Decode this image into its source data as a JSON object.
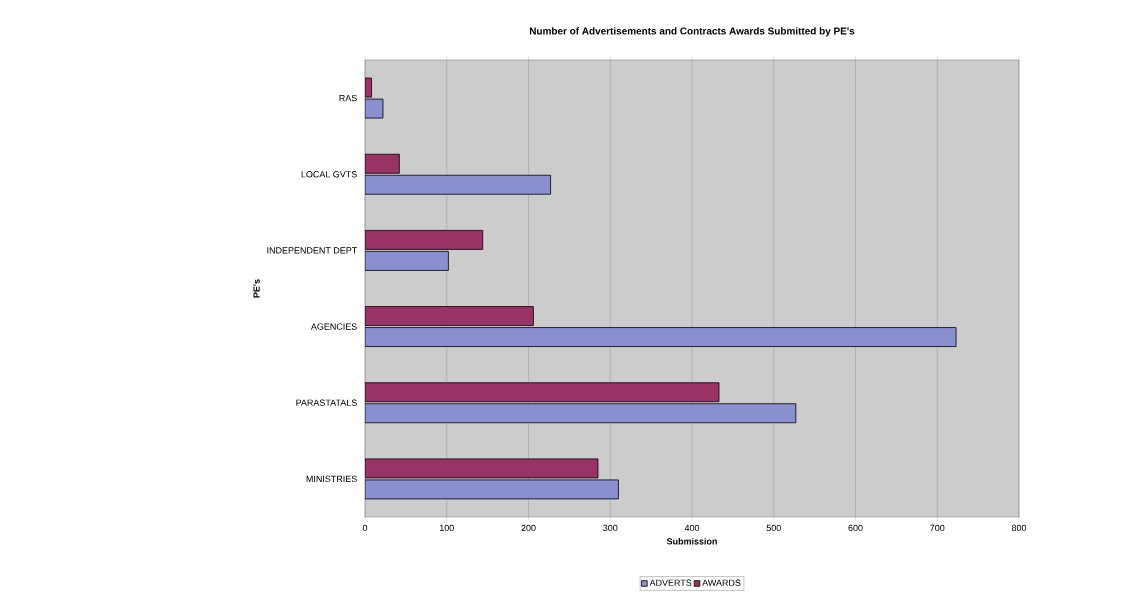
{
  "chart_data": {
    "type": "bar",
    "orientation": "horizontal",
    "title": "Number of Advertisements and Contracts Awards Submitted by PE's",
    "xlabel": "Submission",
    "ylabel": "PE's",
    "categories": [
      "RAS",
      "LOCAL GVTS",
      "INDEPENDENT DEPT",
      "AGENCIES",
      "PARASTATALS",
      "MINISTRIES"
    ],
    "series": [
      {
        "name": "ADVERTS",
        "color": "#8a8fd0",
        "values": [
          22,
          227,
          102,
          723,
          527,
          310
        ]
      },
      {
        "name": "AWARDS",
        "color": "#993366",
        "values": [
          8,
          42,
          144,
          206,
          433,
          285
        ]
      }
    ],
    "xlim": [
      0,
      800
    ],
    "xticks": [
      0,
      100,
      200,
      300,
      400,
      500,
      600,
      700,
      800
    ],
    "grid": "x",
    "legend": "bottom"
  }
}
